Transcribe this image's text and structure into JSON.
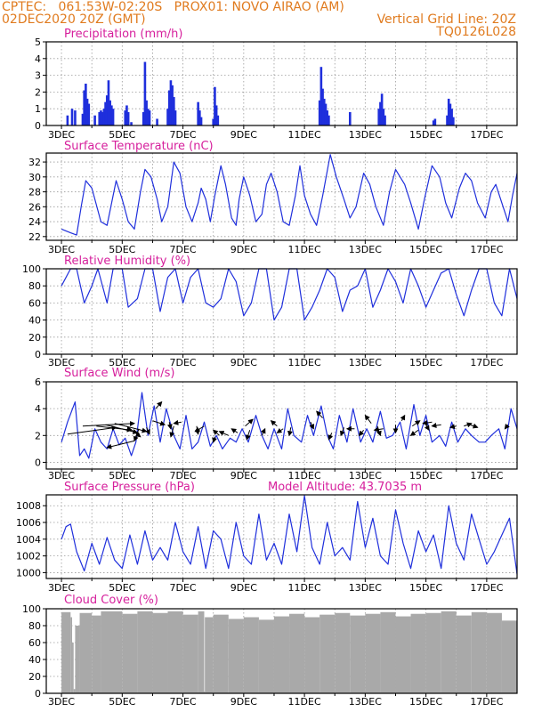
{
  "header": {
    "line1_left": "CPTEC:   061:53W-02:20S   PROX01: NOVO AIRAO (AM)",
    "line2_left": "02DEC2020 20Z (GMT)",
    "line2_right": "Vertical Grid Line: 20Z",
    "line3_right": "TQ0126L028"
  },
  "colors": {
    "header": "#e07b1f",
    "panel_title": "#d61f9c",
    "series": "#1f2fdc",
    "cloud": "#a9a9a9",
    "grid": "#9a9a9a"
  },
  "chart_data": [
    {
      "type": "bar",
      "title": "Precipitation (mm/h)",
      "ylim": [
        0,
        5
      ],
      "yticks": [
        "0",
        "1",
        "2",
        "3",
        "4",
        "5"
      ],
      "xticks": [
        "3DEC",
        "5DEC",
        "7DEC",
        "9DEC",
        "11DEC",
        "13DEC",
        "15DEC",
        "17DEC"
      ],
      "grid": true,
      "bars": [
        [
          0.2,
          0.6
        ],
        [
          0.35,
          1.0
        ],
        [
          0.45,
          0.9
        ],
        [
          0.7,
          0.7
        ],
        [
          0.75,
          2.1
        ],
        [
          0.8,
          2.5
        ],
        [
          0.85,
          1.6
        ],
        [
          0.9,
          1.3
        ],
        [
          1.1,
          0.6
        ],
        [
          1.25,
          0.8
        ],
        [
          1.3,
          0.9
        ],
        [
          1.35,
          0.8
        ],
        [
          1.4,
          1.0
        ],
        [
          1.45,
          1.4
        ],
        [
          1.5,
          1.8
        ],
        [
          1.55,
          2.7
        ],
        [
          1.6,
          1.5
        ],
        [
          1.65,
          1.2
        ],
        [
          1.7,
          1.0
        ],
        [
          2.1,
          0.9
        ],
        [
          2.15,
          1.2
        ],
        [
          2.2,
          0.8
        ],
        [
          2.3,
          0.2
        ],
        [
          2.7,
          0.8
        ],
        [
          2.75,
          3.8
        ],
        [
          2.8,
          1.5
        ],
        [
          2.85,
          1.0
        ],
        [
          2.9,
          0.9
        ],
        [
          3.15,
          0.4
        ],
        [
          3.5,
          1.0
        ],
        [
          3.55,
          2.1
        ],
        [
          3.6,
          2.7
        ],
        [
          3.65,
          2.4
        ],
        [
          3.7,
          1.7
        ],
        [
          3.75,
          0.9
        ],
        [
          4.5,
          1.4
        ],
        [
          4.55,
          0.9
        ],
        [
          4.6,
          0.5
        ],
        [
          5.0,
          0.4
        ],
        [
          5.05,
          2.3
        ],
        [
          5.1,
          1.2
        ],
        [
          5.15,
          0.6
        ],
        [
          8.5,
          1.5
        ],
        [
          8.55,
          3.5
        ],
        [
          8.6,
          2.2
        ],
        [
          8.65,
          1.6
        ],
        [
          8.7,
          1.3
        ],
        [
          8.75,
          0.9
        ],
        [
          8.8,
          0.6
        ],
        [
          9.5,
          0.8
        ],
        [
          10.45,
          1.0
        ],
        [
          10.5,
          1.4
        ],
        [
          10.55,
          1.9
        ],
        [
          10.6,
          1.0
        ],
        [
          10.65,
          0.6
        ],
        [
          12.25,
          0.3
        ],
        [
          12.3,
          0.4
        ],
        [
          12.7,
          0.6
        ],
        [
          12.75,
          1.6
        ],
        [
          12.8,
          1.3
        ],
        [
          12.85,
          1.0
        ],
        [
          12.9,
          0.5
        ]
      ]
    },
    {
      "type": "line",
      "title": "Surface Temperature (nC)",
      "ylim": [
        21.5,
        33.2
      ],
      "yticks": [
        "22",
        "24",
        "26",
        "28",
        "30",
        "32"
      ],
      "xticks": [
        "3DEC",
        "5DEC",
        "7DEC",
        "9DEC",
        "11DEC",
        "13DEC",
        "15DEC",
        "17DEC"
      ],
      "grid": true,
      "x": [
        0,
        0.3,
        0.5,
        0.65,
        0.8,
        1.0,
        1.1,
        1.3,
        1.5,
        1.65,
        1.8,
        2.0,
        2.2,
        2.4,
        2.6,
        2.75,
        2.95,
        3.15,
        3.3,
        3.5,
        3.7,
        3.9,
        4.1,
        4.3,
        4.5,
        4.6,
        4.75,
        4.9,
        5.05,
        5.25,
        5.4,
        5.6,
        5.75,
        5.85,
        6.0,
        6.2,
        6.4,
        6.6,
        6.75,
        6.9,
        7.1,
        7.3,
        7.5,
        7.7,
        7.85,
        8.0,
        8.2,
        8.4,
        8.6,
        8.85,
        9.05,
        9.3,
        9.5,
        9.7,
        9.95,
        10.15,
        10.35,
        10.6,
        10.8,
        11.0,
        11.3,
        11.5,
        11.75,
        11.95,
        12.2,
        12.45,
        12.65,
        12.85,
        13.1,
        13.3,
        13.5,
        13.7,
        13.95,
        14.15,
        14.3,
        14.5,
        14.7,
        14.85,
        15.0
      ],
      "y": [
        23.0,
        22.5,
        22.2,
        26.0,
        29.5,
        28.5,
        27.0,
        24.0,
        23.5,
        26.5,
        29.5,
        27.0,
        24.0,
        23.0,
        28.0,
        31.0,
        30.0,
        27.0,
        24.0,
        26.0,
        32.0,
        30.5,
        26.0,
        24.0,
        26.5,
        28.5,
        27.0,
        24.0,
        27.5,
        31.5,
        29.0,
        24.5,
        23.5,
        27.0,
        30.0,
        27.5,
        24.0,
        25.0,
        29.0,
        30.5,
        28.0,
        24.0,
        23.5,
        27.5,
        31.5,
        27.5,
        25.0,
        23.5,
        27.5,
        33.0,
        30.0,
        27.0,
        24.5,
        26.0,
        30.5,
        29.0,
        26.0,
        23.5,
        28.0,
        31.0,
        29.0,
        26.5,
        23.0,
        27.0,
        31.5,
        30.0,
        26.5,
        24.5,
        28.5,
        30.5,
        29.5,
        26.5,
        24.5,
        28.0,
        29.0,
        26.5,
        24.0,
        27.5,
        30.5
      ]
    },
    {
      "type": "line",
      "title": "Relative Humidity (%)",
      "ylim": [
        0,
        100
      ],
      "yticks": [
        "0",
        "20",
        "40",
        "60",
        "80",
        "100"
      ],
      "xticks": [
        "3DEC",
        "5DEC",
        "7DEC",
        "9DEC",
        "11DEC",
        "13DEC",
        "15DEC",
        "17DEC"
      ],
      "grid": true,
      "x": [
        0,
        0.3,
        0.5,
        0.75,
        1.0,
        1.2,
        1.5,
        1.7,
        2.0,
        2.2,
        2.5,
        2.75,
        3.0,
        3.25,
        3.5,
        3.75,
        4.0,
        4.25,
        4.5,
        4.75,
        5.0,
        5.25,
        5.5,
        5.75,
        6.0,
        6.25,
        6.5,
        6.75,
        7.0,
        7.25,
        7.5,
        7.75,
        8.0,
        8.25,
        8.5,
        8.75,
        9.0,
        9.25,
        9.5,
        9.75,
        10.0,
        10.25,
        10.5,
        10.75,
        11.0,
        11.25,
        11.5,
        11.75,
        12.0,
        12.25,
        12.5,
        12.75,
        13.0,
        13.25,
        13.5,
        13.75,
        14.0,
        14.25,
        14.5,
        14.75,
        15.0
      ],
      "y": [
        80,
        100,
        100,
        60,
        80,
        100,
        60,
        100,
        100,
        55,
        65,
        100,
        100,
        50,
        90,
        100,
        60,
        90,
        100,
        60,
        55,
        65,
        100,
        85,
        45,
        60,
        100,
        100,
        40,
        55,
        100,
        100,
        40,
        55,
        75,
        100,
        90,
        50,
        75,
        80,
        100,
        55,
        75,
        100,
        85,
        60,
        100,
        80,
        55,
        75,
        95,
        100,
        70,
        45,
        75,
        100,
        100,
        60,
        45,
        100,
        65
      ]
    },
    {
      "type": "line",
      "title": "Surface Wind (m/s)",
      "ylim": [
        -0.5,
        6
      ],
      "yticks": [
        "0",
        "2",
        "4",
        "6"
      ],
      "xticks": [
        "3DEC",
        "5DEC",
        "7DEC",
        "9DEC",
        "11DEC",
        "13DEC",
        "15DEC",
        "17DEC"
      ],
      "grid": true,
      "x": [
        0,
        0.2,
        0.45,
        0.6,
        0.75,
        0.9,
        1.1,
        1.3,
        1.5,
        1.7,
        1.9,
        2.1,
        2.3,
        2.45,
        2.65,
        2.85,
        3.05,
        3.25,
        3.45,
        3.7,
        3.9,
        4.1,
        4.3,
        4.5,
        4.7,
        4.9,
        5.1,
        5.3,
        5.55,
        5.75,
        5.95,
        6.15,
        6.4,
        6.6,
        6.8,
        7.0,
        7.25,
        7.45,
        7.65,
        7.9,
        8.1,
        8.3,
        8.55,
        8.75,
        8.95,
        9.15,
        9.4,
        9.6,
        9.85,
        10.05,
        10.25,
        10.5,
        10.7,
        10.9,
        11.15,
        11.35,
        11.6,
        11.8,
        12.0,
        12.2,
        12.45,
        12.65,
        12.85,
        13.05,
        13.3,
        13.5,
        13.75,
        13.95,
        14.15,
        14.4,
        14.6,
        14.8,
        15.0
      ],
      "y": [
        1.5,
        3.0,
        4.5,
        0.5,
        1.0,
        0.3,
        2.5,
        1.5,
        1.0,
        2.5,
        1.3,
        1.8,
        0.5,
        1.5,
        5.2,
        2.0,
        4.2,
        1.5,
        4.0,
        2.0,
        1.0,
        3.5,
        1.0,
        1.5,
        3.0,
        1.2,
        2.0,
        1.0,
        1.8,
        1.5,
        2.5,
        1.5,
        3.5,
        2.0,
        1.0,
        2.5,
        1.0,
        4.0,
        2.0,
        1.5,
        3.5,
        2.0,
        4.2,
        2.0,
        1.0,
        3.5,
        1.5,
        4.0,
        1.5,
        2.5,
        1.5,
        3.8,
        1.8,
        2.0,
        3.0,
        1.0,
        4.3,
        2.0,
        3.5,
        1.5,
        2.0,
        1.2,
        3.0,
        1.5,
        2.5,
        2.0,
        1.5,
        1.5,
        2.0,
        2.5,
        1.0,
        4.0,
        2.5
      ],
      "arrows": [
        [
          0.2,
          2.1,
          1.8,
          2.6
        ],
        [
          0.7,
          2.7,
          2.4,
          2.9
        ],
        [
          1.15,
          2.7,
          2.3,
          2.4
        ],
        [
          1.45,
          2.8,
          2.5,
          2.2
        ],
        [
          1.75,
          2.9,
          2.8,
          2.3
        ],
        [
          2.15,
          2.7,
          2.6,
          1.9
        ],
        [
          2.4,
          1.6,
          1.5,
          1.1
        ],
        [
          2.55,
          2.5,
          2.4,
          1.6
        ],
        [
          2.8,
          2.6,
          2.9,
          2.1
        ],
        [
          3.0,
          3.1,
          3.4,
          2.8
        ],
        [
          3.1,
          4.0,
          3.3,
          4.5
        ],
        [
          3.55,
          3.0,
          3.6,
          2.5
        ],
        [
          3.7,
          2.7,
          3.6,
          1.9
        ],
        [
          3.95,
          3.0,
          3.7,
          2.9
        ],
        [
          4.45,
          2.7,
          4.5,
          2.1
        ],
        [
          4.7,
          2.7,
          4.4,
          2.3
        ],
        [
          5.05,
          1.9,
          5.0,
          1.5
        ],
        [
          5.2,
          2.0,
          5.0,
          2.4
        ],
        [
          5.5,
          2.0,
          5.2,
          2.3
        ],
        [
          5.8,
          2.2,
          5.6,
          2.5
        ],
        [
          6.05,
          2.7,
          6.3,
          3.2
        ],
        [
          6.2,
          2.4,
          6.1,
          1.7
        ],
        [
          6.6,
          2.0,
          6.7,
          2.5
        ],
        [
          7.1,
          2.7,
          6.9,
          3.1
        ],
        [
          7.3,
          2.5,
          7.1,
          2.2
        ],
        [
          7.55,
          2.6,
          7.5,
          2.0
        ],
        [
          8.2,
          3.0,
          8.3,
          2.5
        ],
        [
          8.6,
          3.3,
          8.4,
          3.8
        ],
        [
          8.9,
          2.2,
          8.8,
          1.7
        ],
        [
          9.3,
          2.6,
          9.2,
          2.0
        ],
        [
          9.65,
          2.5,
          9.4,
          2.5
        ],
        [
          9.95,
          2.4,
          9.8,
          2.0
        ],
        [
          10.2,
          2.9,
          10.0,
          3.5
        ],
        [
          10.4,
          2.7,
          10.5,
          2.0
        ],
        [
          10.6,
          2.5,
          10.3,
          2.4
        ],
        [
          11.0,
          2.8,
          11.0,
          2.2
        ],
        [
          11.2,
          3.1,
          11.3,
          3.5
        ],
        [
          11.55,
          2.7,
          11.8,
          3.1
        ],
        [
          11.75,
          2.4,
          11.5,
          2.0
        ],
        [
          12.0,
          2.8,
          12.1,
          2.4
        ],
        [
          12.2,
          3.0,
          11.9,
          2.9
        ],
        [
          12.5,
          2.8,
          12.2,
          2.7
        ],
        [
          13.0,
          2.7,
          12.8,
          2.6
        ],
        [
          13.25,
          2.7,
          13.5,
          2.9
        ],
        [
          13.45,
          2.8,
          13.7,
          2.6
        ],
        [
          14.7,
          2.8,
          14.6,
          2.5
        ]
      ]
    },
    {
      "type": "line",
      "title": "Surface Pressure (hPa)",
      "annotation": "Model Altitude: 43.7035 m",
      "ylim": [
        999.3,
        1009.3
      ],
      "yticks": [
        "1000",
        "1002",
        "1004",
        "1006",
        "1008"
      ],
      "xticks": [
        "3DEC",
        "5DEC",
        "7DEC",
        "9DEC",
        "11DEC",
        "13DEC",
        "15DEC",
        "17DEC"
      ],
      "grid": true,
      "x": [
        0,
        0.15,
        0.3,
        0.5,
        0.75,
        1.0,
        1.25,
        1.5,
        1.75,
        2.0,
        2.25,
        2.5,
        2.75,
        3.0,
        3.25,
        3.5,
        3.75,
        4.0,
        4.25,
        4.5,
        4.75,
        5.0,
        5.25,
        5.5,
        5.75,
        6.0,
        6.25,
        6.5,
        6.75,
        7.0,
        7.25,
        7.5,
        7.75,
        8.0,
        8.25,
        8.5,
        8.75,
        9.0,
        9.25,
        9.5,
        9.75,
        10.0,
        10.25,
        10.5,
        10.75,
        11.0,
        11.25,
        11.5,
        11.75,
        12.0,
        12.25,
        12.5,
        12.75,
        13.0,
        13.25,
        13.5,
        13.75,
        14.0,
        14.25,
        14.5,
        14.75,
        15.0
      ],
      "y": [
        1004.0,
        1005.5,
        1005.8,
        1002.5,
        1000.2,
        1003.5,
        1001.0,
        1004.2,
        1001.5,
        1000.5,
        1004.5,
        1001.0,
        1005.0,
        1001.5,
        1003.0,
        1001.5,
        1006.0,
        1002.5,
        1001.0,
        1005.5,
        1000.5,
        1005.0,
        1004.0,
        1000.5,
        1006.0,
        1002.0,
        1001.0,
        1007.0,
        1001.5,
        1003.5,
        1001.0,
        1007.0,
        1002.5,
        1009.2,
        1003.0,
        1001.0,
        1006.0,
        1002.0,
        1003.0,
        1001.5,
        1008.5,
        1003.0,
        1006.5,
        1002.0,
        1001.0,
        1007.5,
        1003.5,
        1000.5,
        1005.0,
        1002.5,
        1004.5,
        1000.5,
        1008.0,
        1003.5,
        1001.5,
        1007.0,
        1004.0,
        1001.0,
        1002.5,
        1004.5,
        1006.5,
        999.8
      ]
    },
    {
      "type": "bar",
      "title": "Cloud Cover (%)",
      "ylim": [
        0,
        100
      ],
      "yticks": [
        "0",
        "20",
        "40",
        "60",
        "80",
        "100"
      ],
      "xticks": [
        "3DEC",
        "5DEC",
        "7DEC",
        "9DEC",
        "11DEC",
        "13DEC",
        "15DEC",
        "17DEC"
      ],
      "grid": true,
      "segments": [
        [
          0.0,
          0.3,
          96
        ],
        [
          0.3,
          0.35,
          90
        ],
        [
          0.35,
          0.4,
          60
        ],
        [
          0.4,
          0.45,
          5
        ],
        [
          0.45,
          0.6,
          80
        ],
        [
          0.6,
          1.0,
          95
        ],
        [
          1.0,
          1.3,
          92
        ],
        [
          1.3,
          2.0,
          97
        ],
        [
          2.0,
          2.5,
          94
        ],
        [
          2.5,
          3.0,
          97
        ],
        [
          3.0,
          3.5,
          95
        ],
        [
          3.5,
          4.0,
          97
        ],
        [
          4.0,
          4.5,
          93
        ],
        [
          4.5,
          4.7,
          97
        ],
        [
          4.7,
          4.72,
          2
        ],
        [
          4.72,
          5.0,
          90
        ],
        [
          5.0,
          5.5,
          93
        ],
        [
          5.5,
          6.0,
          88
        ],
        [
          6.0,
          6.5,
          90
        ],
        [
          6.5,
          7.0,
          87
        ],
        [
          7.0,
          7.5,
          91
        ],
        [
          7.5,
          8.0,
          94
        ],
        [
          8.0,
          8.5,
          90
        ],
        [
          8.5,
          9.0,
          93
        ],
        [
          9.0,
          9.5,
          95
        ],
        [
          9.5,
          10.0,
          92
        ],
        [
          10.0,
          10.5,
          94
        ],
        [
          10.5,
          11.0,
          96
        ],
        [
          11.0,
          11.5,
          91
        ],
        [
          11.5,
          12.0,
          94
        ],
        [
          12.0,
          12.5,
          95
        ],
        [
          12.5,
          13.0,
          97
        ],
        [
          13.0,
          13.5,
          92
        ],
        [
          13.5,
          14.0,
          96
        ],
        [
          14.0,
          14.5,
          95
        ],
        [
          14.5,
          15.0,
          86
        ]
      ]
    }
  ]
}
